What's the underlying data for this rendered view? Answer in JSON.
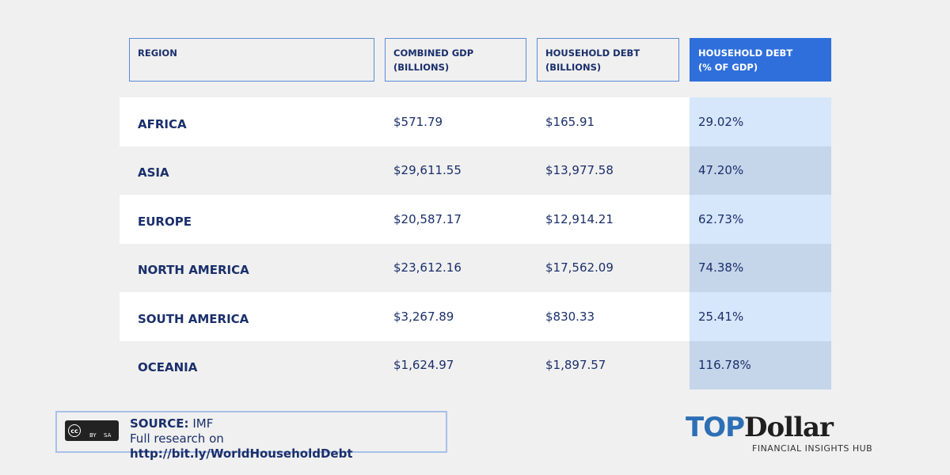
{
  "table": {
    "headers": [
      [
        "REGION"
      ],
      [
        "COMBINED GDP",
        "(BILLIONS)"
      ],
      [
        "HOUSEHOLD DEBT",
        "(BILLIONS)"
      ],
      [
        "HOUSEHOLD DEBT",
        "(% OF GDP)"
      ]
    ],
    "rows": [
      [
        "AFRICA",
        "$571.79",
        "$165.91",
        "29.02%"
      ],
      [
        "ASIA",
        "$29,611.55",
        "$13,977.58",
        "47.20%"
      ],
      [
        "EUROPE",
        "$20,587.17",
        "$12,914.21",
        "62.73%"
      ],
      [
        "NORTH AMERICA",
        "$23,612.16",
        "$17,562.09",
        "74.38%"
      ],
      [
        "SOUTH AMERICA",
        "$3,267.89",
        "$830.33",
        "25.41%"
      ],
      [
        "OCEANIA",
        "$1,624.97",
        "$1,897.57",
        "116.78%"
      ]
    ]
  },
  "footer": {
    "badge": [
      "cc",
      "BY",
      "SA"
    ],
    "source_label": "SOURCE:",
    "source": "IMF",
    "research_label": "Full research on",
    "link": "http://bit.ly/WorldHouseholdDebt"
  },
  "logo": {
    "top": "TOP",
    "dollar": "Dollar",
    "tagline": "FINANCIAL INSIGHTS HUB"
  }
}
